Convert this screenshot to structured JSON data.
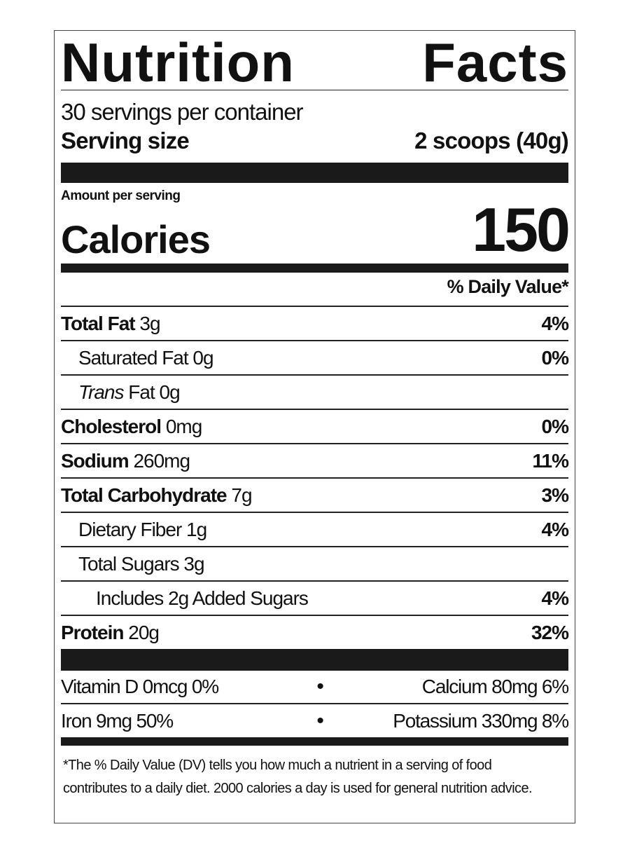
{
  "title": "Nutrition Facts",
  "servings": "30 servings per container",
  "serving_size": {
    "label": "Serving size",
    "value": "2 scoops (40g)"
  },
  "amount_per_serving": "Amount per serving",
  "calories": {
    "label": "Calories",
    "value": "150"
  },
  "dv_header": "% Daily Value*",
  "nutrients": [
    {
      "name": "Total Fat",
      "amount": "3g",
      "dv": "4%"
    },
    {
      "name": "Saturated Fat 0g",
      "dv": "0%"
    },
    {
      "name_italic": "Trans",
      "name": "Fat 0g"
    },
    {
      "name": "Cholesterol",
      "amount": "0mg",
      "dv": "0%"
    },
    {
      "name": "Sodium",
      "amount": "260mg",
      "dv": "11%"
    },
    {
      "name": "Total Carbohydrate",
      "amount": "7g",
      "dv": "3%"
    },
    {
      "name": "Dietary Fiber 1g",
      "dv": "4%"
    },
    {
      "name": "Total Sugars 3g"
    },
    {
      "name": "Includes 2g Added Sugars",
      "dv": "4%"
    },
    {
      "name": "Protein",
      "amount": "20g",
      "dv": "32%"
    }
  ],
  "vitamins": [
    [
      "Vitamin D 0mcg 0%",
      "Calcium 80mg 6%"
    ],
    [
      "Iron 9mg 50%",
      "Potassium 330mg 8%"
    ]
  ],
  "footnote": "*The % Daily Value (DV) tells you how much a nutrient in a serving of food contributes to a daily diet. 2000 calories a day is used for general nutrition advice."
}
